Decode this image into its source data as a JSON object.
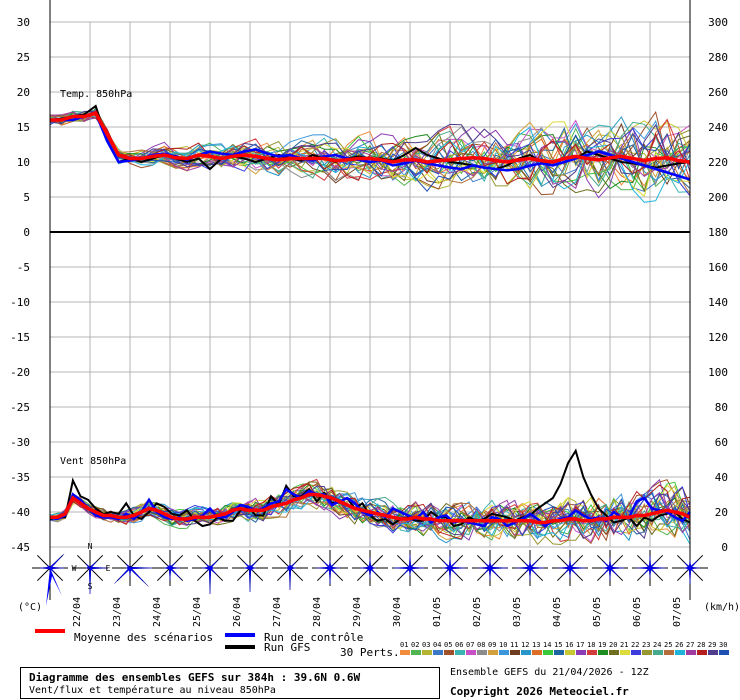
{
  "chart_data": {
    "type": "line",
    "panels": [
      {
        "name": "temperature",
        "label": "Temp. 850hPa",
        "left_axis_ticks": [
          "30",
          "25",
          "20",
          "15",
          "10",
          "5",
          "0"
        ],
        "right_axis_ticks": [
          "300",
          "280",
          "260",
          "240",
          "220",
          "200",
          "180"
        ],
        "mean_series": [
          16,
          16,
          16.5,
          16.5,
          17,
          14,
          11,
          10.5,
          10.5,
          10.8,
          11,
          10.6,
          10.5,
          11,
          10.8,
          10.5,
          10.8,
          11,
          10.8,
          10.5,
          10.3,
          10.5,
          10.5,
          10.5,
          10.5,
          10.2,
          10.3,
          10.5,
          10.5,
          10.3,
          10,
          10.3,
          10.3,
          10,
          10.2,
          10.3,
          10.5,
          10.6,
          10.5,
          10.2,
          10,
          10.3,
          10.5,
          10.2,
          10,
          10.5,
          10.8,
          10.5,
          10.3,
          10.6,
          10.8,
          10.5,
          10.2,
          10.5,
          10.6,
          10.2,
          10
        ],
        "control_series": [
          16,
          16,
          16,
          16.5,
          17,
          13,
          10,
          10.2,
          10.5,
          11,
          11.2,
          10.8,
          10.3,
          11,
          11.5,
          11.2,
          11,
          11.5,
          11.8,
          11.2,
          10.8,
          11,
          10.5,
          10.2,
          10.8,
          11,
          10.5,
          10.3,
          10,
          10.2,
          9.5,
          9.8,
          10.2,
          9.8,
          9.5,
          9.2,
          9,
          9.5,
          9.2,
          9,
          8.8,
          9,
          9.5,
          9.8,
          9.5,
          10,
          10.5,
          11,
          11.5,
          11,
          10.5,
          10,
          9.5,
          9,
          8.5,
          8,
          7.5
        ],
        "gfs_series": [
          16,
          16.2,
          16.5,
          16.8,
          18,
          13,
          10,
          10.5,
          10,
          10.5,
          11,
          10.5,
          10,
          10.5,
          9,
          10.5,
          10.8,
          10.5,
          10,
          10.5,
          11,
          10.5,
          10.2,
          11,
          10.5,
          10,
          10.5,
          10.8,
          10.5,
          10.5,
          10.2,
          11,
          12,
          11,
          10.5,
          10,
          9.8,
          9.5,
          9.2,
          9,
          9.5,
          10.5,
          11,
          10,
          9.5,
          10,
          10.5,
          11.5,
          11,
          10.5,
          10,
          9.8,
          9.5,
          9.2,
          9.5,
          9.8,
          10
        ]
      },
      {
        "name": "wind",
        "label": "Vent 850hPa",
        "left_axis_ticks": [
          "-5",
          "-10",
          "-15",
          "-20",
          "-25",
          "-30",
          "-35",
          "-40",
          "-45"
        ],
        "right_axis_ticks": [
          "160",
          "140",
          "120",
          "100",
          "80",
          "60",
          "40",
          "20",
          "0"
        ],
        "mean_series": [
          17,
          17,
          19,
          28,
          25,
          22,
          20,
          18,
          18,
          17,
          17,
          18,
          20,
          22,
          21,
          19,
          17,
          16,
          16,
          17,
          17,
          17,
          18,
          19,
          21,
          22,
          21,
          21,
          21,
          23,
          24,
          25,
          27,
          28,
          30,
          30,
          29,
          28,
          26,
          24,
          22,
          21,
          20,
          19,
          18,
          17,
          16,
          16,
          17,
          16,
          16,
          15,
          15,
          15,
          15,
          15,
          15,
          15,
          15,
          15,
          15,
          15,
          15,
          15,
          14,
          14,
          15,
          15,
          16,
          16,
          15,
          15,
          16,
          16,
          17,
          17,
          17,
          18,
          18,
          19,
          20,
          21,
          20,
          19,
          17
        ],
        "control_series": [
          17,
          16,
          18,
          30,
          27,
          22,
          18,
          17,
          17,
          16,
          19,
          16,
          20,
          27,
          20,
          17,
          16,
          17,
          15,
          16,
          18,
          22,
          17,
          17,
          20,
          24,
          23,
          21,
          22,
          25,
          26,
          33,
          30,
          28,
          32,
          30,
          30,
          24,
          26,
          28,
          25,
          20,
          18,
          20,
          17,
          22,
          20,
          18,
          16,
          20,
          14,
          17,
          18,
          14,
          15,
          14,
          13,
          12,
          17,
          16,
          12,
          14,
          16,
          19,
          16,
          12,
          15,
          16,
          17,
          21,
          18,
          16,
          17,
          15,
          20,
          17,
          17,
          26,
          28,
          22,
          21,
          20,
          17,
          15,
          20
        ],
        "gfs_series": [
          16,
          17,
          17,
          38,
          29,
          27,
          22,
          19,
          20,
          19,
          25,
          18,
          16,
          20,
          25,
          23,
          19,
          18,
          21,
          15,
          12,
          13,
          17,
          15,
          15,
          21,
          23,
          18,
          18,
          29,
          24,
          35,
          29,
          29,
          33,
          26,
          31,
          25,
          26,
          28,
          22,
          25,
          18,
          15,
          16,
          13,
          16,
          17,
          15,
          15,
          20,
          17,
          17,
          12,
          13,
          17,
          15,
          16,
          19,
          18,
          17,
          15,
          17,
          18,
          22,
          25,
          28,
          36,
          48,
          55,
          40,
          30,
          22,
          18,
          14,
          15,
          17,
          12,
          17,
          15,
          18,
          19,
          20,
          16,
          14
        ]
      }
    ],
    "x_tick_labels": [
      "22/04",
      "23/04",
      "24/04",
      "25/04",
      "26/04",
      "27/04",
      "28/04",
      "29/04",
      "30/04",
      "01/05",
      "02/05",
      "03/05",
      "04/05",
      "05/05",
      "06/05",
      "07/05"
    ],
    "left_unit": "(°C)",
    "right_unit": "(km/h)",
    "compass_labels": {
      "n": "N",
      "s": "S",
      "e": "E",
      "w": "W"
    },
    "legend": {
      "mean": "Moyenne des scénarios",
      "control": "Run de contrôle",
      "gfs": "Run GFS",
      "perts_label": "30 Perts.",
      "pert_numbers": [
        "01",
        "02",
        "03",
        "04",
        "05",
        "06",
        "07",
        "08",
        "09",
        "10",
        "11",
        "12",
        "13",
        "14",
        "15",
        "16",
        "17",
        "18",
        "19",
        "20",
        "21",
        "22",
        "23",
        "24",
        "25",
        "26",
        "27",
        "28",
        "29",
        "30"
      ],
      "pert_colors": [
        "#f08c3c",
        "#50b450",
        "#b4b432",
        "#3c78c8",
        "#a05028",
        "#3cb4b4",
        "#c850c8",
        "#8c8c8c",
        "#d2a03c",
        "#3c96dc",
        "#6e3c1e",
        "#2896c8",
        "#dc6e28",
        "#3cc83c",
        "#1e64a0",
        "#c8c832",
        "#8c3cb4",
        "#d23c3c",
        "#1e8c1e",
        "#6e6e1e",
        "#dcdc3c",
        "#3c3cdc",
        "#969632",
        "#46aa8c",
        "#b46e3c",
        "#1eb4dc",
        "#a03ca0",
        "#b41e1e",
        "#503c8c",
        "#1e50b4"
      ]
    },
    "colors": {
      "mean": "#ff0000",
      "control": "#0000ff",
      "gfs": "#000000",
      "grid": "#b4b4b4",
      "wind_rose": "#0000ff"
    }
  },
  "info": {
    "title": "Diagramme des ensembles GEFS sur 384h : 39.6N 0.6W",
    "subtitle": "Vent/flux et température au niveau 850hPa",
    "ensemble": "Ensemble GEFS du 21/04/2026 - 12Z",
    "copyright": "Copyright 2026 Meteociel.fr"
  }
}
